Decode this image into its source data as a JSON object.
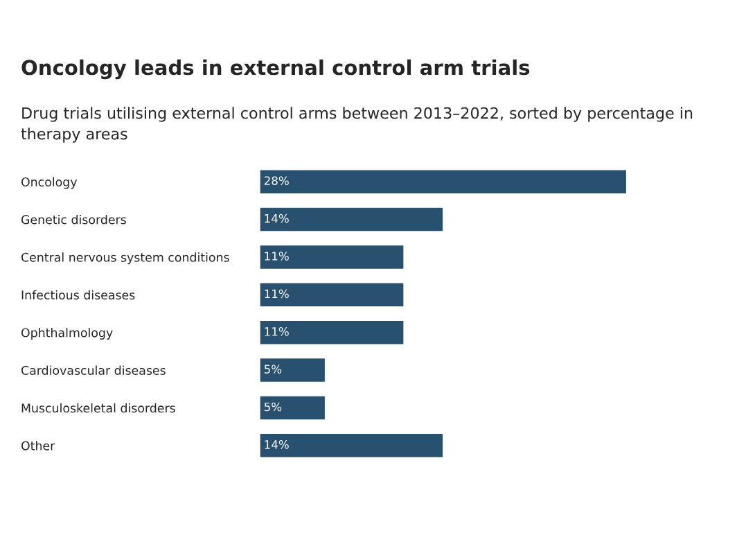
{
  "chart_data": {
    "type": "bar",
    "orientation": "horizontal",
    "title": "Oncology leads in external control arm trials",
    "subtitle": "Drug trials utilising external control arms between 2013–2022, sorted by percentage in therapy areas",
    "categories": [
      "Oncology",
      "Genetic disorders",
      "Central nervous system conditions",
      "Infectious diseases",
      "Ophthalmology",
      "Cardiovascular diseases",
      "Musculoskeletal disorders",
      "Other"
    ],
    "values": [
      28,
      14,
      11,
      11,
      11,
      5,
      5,
      14
    ],
    "value_labels": [
      "28%",
      "14%",
      "11%",
      "11%",
      "11%",
      "5%",
      "5%",
      "14%"
    ],
    "color": "#28506f",
    "tick_labels": "y",
    "grid": false,
    "legend": false
  }
}
